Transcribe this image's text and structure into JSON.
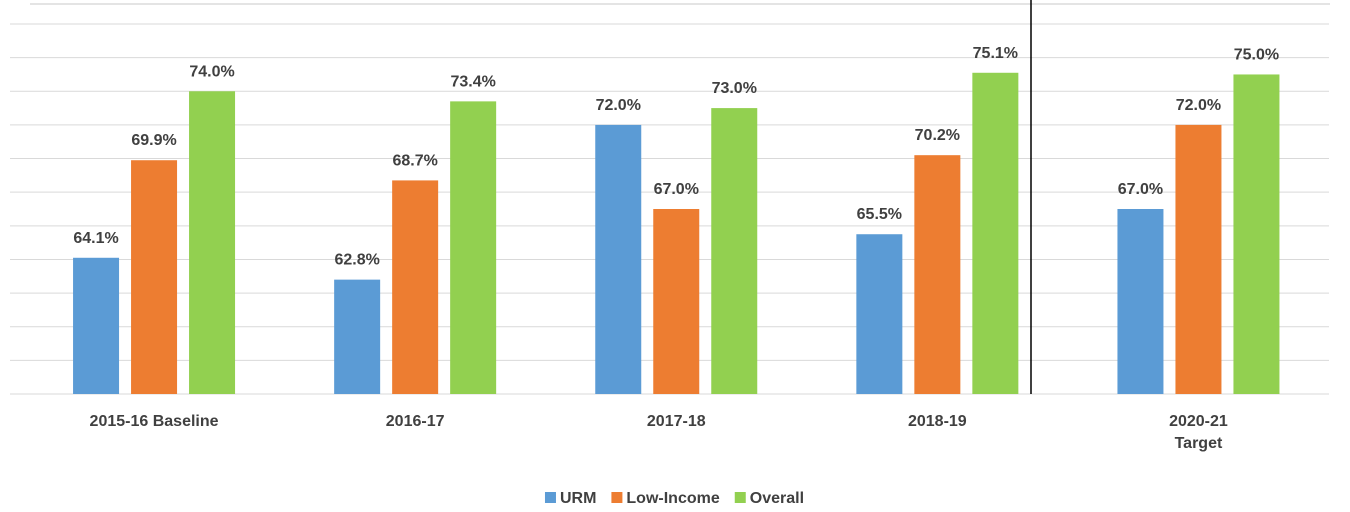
{
  "chart_data": {
    "type": "bar",
    "categories": [
      "2015-16 Baseline",
      "2016-17",
      "2017-18",
      "2018-19",
      "2020-21\nTarget"
    ],
    "series": [
      {
        "name": "URM",
        "color": "#5b9bd5",
        "values": [
          64.1,
          62.8,
          72.0,
          65.5,
          67.0
        ],
        "value_labels": [
          "64.1%",
          "62.8%",
          "72.0%",
          "65.5%",
          "67.0%"
        ]
      },
      {
        "name": "Low-Income",
        "color": "#ed7d31",
        "values": [
          69.9,
          68.7,
          67.0,
          70.2,
          72.0
        ],
        "value_labels": [
          "69.9%",
          "68.7%",
          "67.0%",
          "70.2%",
          "72.0%"
        ]
      },
      {
        "name": "Overall",
        "color": "#92d050",
        "values": [
          74.0,
          73.4,
          73.0,
          75.1,
          75.0
        ],
        "value_labels": [
          "74.0%",
          "73.4%",
          "73.0%",
          "75.1%",
          "75.0%"
        ]
      }
    ],
    "ylim": [
      56,
      78
    ],
    "yticks": [
      56,
      58,
      60,
      62,
      64,
      66,
      68,
      70,
      72,
      74,
      76,
      78
    ],
    "grid": true
  }
}
